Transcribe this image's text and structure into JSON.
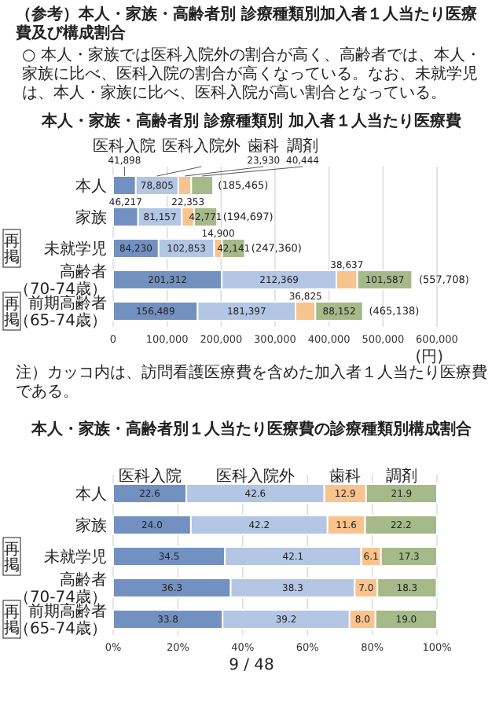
{
  "chart_data": [
    {
      "type": "other",
      "title": "（参考）本人・家族・高齢者別 診療種類別加入者１人当たり医療費及び構成割合",
      "annotations": [
        "○ 本人・家族では医科入院外の割合が高く、高齢者では、本人・家族に比べ、医科入院の割合が高くなっている。なお、未就学児は、本人・家族に比べ、医科入院が高い割合となっている。"
      ]
    },
    {
      "type": "bar",
      "orientation": "horizontal",
      "stacked": true,
      "title": "本人・家族・高齢者別 診療種類別 加入者１人当たり医療費",
      "xlabel": "(円)",
      "categories": [
        "本人",
        "家族",
        "未就学児",
        "高齢者（70-74歳）",
        "前期高齢者（65-74歳）"
      ],
      "series": [
        {
          "name": "医科入院",
          "color": "#7391c0",
          "values": [
            41898,
            46217,
            84230,
            201312,
            156489
          ],
          "value_labels": [
            "41,898",
            "46,217",
            "84,230",
            "201,312",
            "156,489"
          ]
        },
        {
          "name": "医科入院外",
          "color": "#b3c6e4",
          "values": [
            78805,
            81157,
            102853,
            212369,
            181397
          ],
          "value_labels": [
            "78,805",
            "81,157",
            "102,853",
            "212,369",
            "181,397"
          ]
        },
        {
          "name": "歯科",
          "color": "#f8c38d",
          "values": [
            23930,
            22353,
            14900,
            38637,
            36825
          ],
          "value_labels": [
            "23,930",
            "22,353",
            "14,900",
            "38,637",
            "36,825"
          ]
        },
        {
          "name": "調剤",
          "color": "#a6b989",
          "values": [
            40444,
            42771,
            42141,
            101587,
            88152
          ],
          "value_labels": [
            "40,444",
            "42,771",
            "42,141",
            "101,587",
            "88,152"
          ]
        }
      ],
      "xlim": [
        0,
        600000
      ],
      "xticks": [
        0,
        {
          "value": 100000,
          "label": "100,000"
        },
        {
          "value": 200000,
          "label": "200,000"
        },
        {
          "value": 300000,
          "label": "300,000"
        },
        {
          "value": 400000,
          "label": "400,000"
        },
        {
          "value": 500000,
          "label": "500,000"
        },
        {
          "value": 600000,
          "label": "600,000"
        }
      ],
      "grid": "x",
      "annotations": [
        "再掲",
        "再掲",
        {
          "text": "(185,465)",
          "x": 185465,
          "y": "本人"
        },
        {
          "text": "(194,697)",
          "x": 194697,
          "y": "家族"
        },
        {
          "text": "(247,360)",
          "x": 247360,
          "y": "未就学児"
        },
        {
          "text": "(557,708)",
          "x": 557708,
          "y": "高齢者（70-74歳）"
        },
        {
          "text": "(465,138)",
          "x": 465138,
          "y": "前期高齢者（65-74歳）"
        },
        "注）カッコ内は、訪問看護医療費を含めた加入者１人当たり医療費である。"
      ]
    },
    {
      "type": "bar",
      "orientation": "horizontal",
      "stacked": true,
      "title": "本人・家族・高齢者別１人当たり医療費の診療種類別構成割合",
      "categories": [
        "本人",
        "家族",
        "未就学児",
        "高齢者（70-74歳）",
        "前期高齢者（65-74歳）"
      ],
      "series": [
        {
          "name": "医科入院",
          "color": "#7391c0",
          "values": [
            22.6,
            24.0,
            34.5,
            36.3,
            33.8
          ],
          "value_labels": [
            "22.6",
            "24.0",
            "34.5",
            "36.3",
            "33.8"
          ]
        },
        {
          "name": "医科入院外",
          "color": "#b3c6e4",
          "values": [
            42.6,
            42.2,
            42.1,
            38.3,
            39.2
          ],
          "value_labels": [
            "42.6",
            "42.2",
            "42.1",
            "38.3",
            "39.2"
          ]
        },
        {
          "name": "歯科",
          "color": "#f8c38d",
          "values": [
            12.9,
            11.6,
            6.1,
            7.0,
            8.0
          ],
          "value_labels": [
            "12.9",
            "11.6",
            "6.1",
            "7.0",
            "8.0"
          ]
        },
        {
          "name": "調剤",
          "color": "#a6b989",
          "values": [
            21.9,
            22.2,
            17.3,
            18.3,
            19.0
          ],
          "value_labels": [
            "21.9",
            "22.2",
            "17.3",
            "18.3",
            "19.0"
          ]
        }
      ],
      "xlim": [
        0,
        100
      ],
      "xticks": [
        {
          "value": 0,
          "label": "0%"
        },
        {
          "value": 20,
          "label": "20%"
        },
        {
          "value": 40,
          "label": "40%"
        },
        {
          "value": 60,
          "label": "60%"
        },
        {
          "value": 80,
          "label": "80%"
        },
        {
          "value": 100,
          "label": "100%"
        }
      ],
      "grid": "x",
      "annotations": [
        "再掲",
        "再掲",
        "9 / 48"
      ]
    }
  ]
}
